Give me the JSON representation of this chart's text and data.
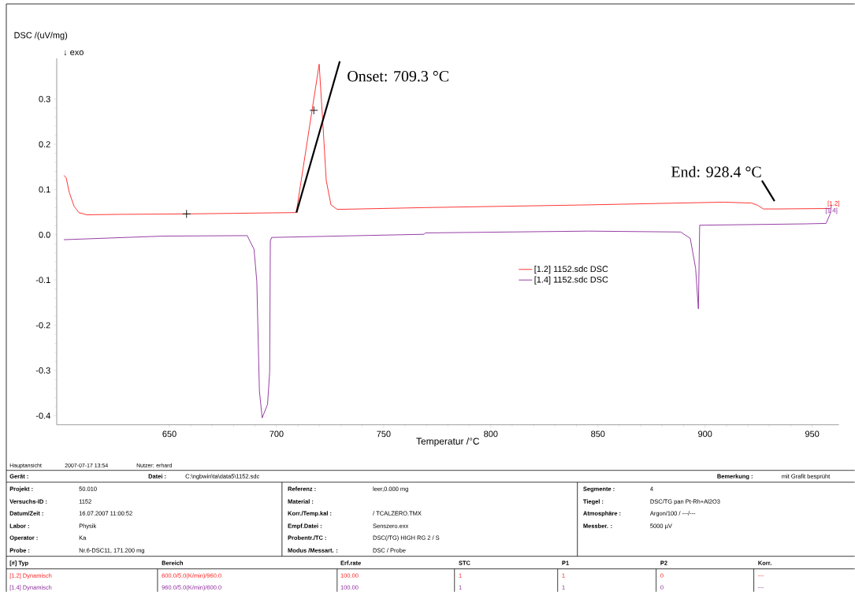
{
  "chart_data": {
    "type": "line",
    "ylabel": "DSC /(uV/mg)",
    "xlabel": "Temperatur /°C",
    "xlim": [
      597.4,
      962.5
    ],
    "ylim": [
      -0.42,
      0.39
    ],
    "xticks": [
      650,
      700,
      750,
      800,
      850,
      900,
      950
    ],
    "yticks": [
      -0.4,
      -0.3,
      -0.2,
      -0.1,
      {
        "value": 0,
        "label": "0.0"
      },
      0.1,
      0.2,
      0.3
    ],
    "legend": "right",
    "marker": "none",
    "grid": false,
    "series": [
      {
        "name": "[1.2] 1152.sdc DSC",
        "color": "#ff2020",
        "x": [
          600.7,
          601.8,
          603.3,
          605.5,
          607.7,
          611.4,
          626,
          658,
          709.2,
          719.9,
          721.7,
          723.2,
          725.4,
          728.3,
          769.5,
          845.6,
          908.8,
          921.7,
          924.6,
          927.2,
          934,
          958.5
        ],
        "values": [
          0.131,
          0.126,
          0.093,
          0.063,
          0.049,
          0.044,
          0.045,
          0.046,
          0.049,
          0.377,
          0.24,
          0.12,
          0.066,
          0.056,
          0.06,
          0.066,
          0.072,
          0.07,
          0.065,
          0.057,
          0.057,
          0.058
        ]
      },
      {
        "name": "[1.4] 1152.sdc DSC",
        "color": "#8b2a9b",
        "x": [
          959,
          958.4,
          956.5,
          947,
          897.5,
          896.9,
          895.6,
          893.1,
          888.6,
          845.6,
          769.5,
          768.8,
          697.7,
          697.1,
          696.8,
          695.8,
          693.3,
          692,
          690.8,
          689.5,
          686.3,
          647,
          600.7
        ],
        "values": [
          0.066,
          0.046,
          0.025,
          0.024,
          0.021,
          -0.164,
          -0.074,
          -0.008,
          0.006,
          0.008,
          0.004,
          0.001,
          -0.006,
          -0.014,
          -0.303,
          -0.375,
          -0.405,
          -0.345,
          -0.104,
          -0.032,
          -0.002,
          -0.003,
          -0.011
        ]
      },
      {
        "type": "scatter",
        "marker": "cross",
        "color": "#000000",
        "x": [
          658,
          717.4
        ],
        "values": [
          0.046,
          0.275
        ]
      }
    ],
    "annotations": [
      "↓ exo",
      {
        "text": "Onset: 709.3 °C",
        "x": 709.3,
        "y": 0.049
      },
      {
        "text": "End: 928.4 °C",
        "x": 928.4,
        "y": 0.057
      },
      {
        "text": "[1.2]",
        "x": 960,
        "y": 0.058
      },
      {
        "text": "[1.4]",
        "x": 959,
        "y": 0.063
      },
      "Hauptansicht",
      "2007-07-17 13:54",
      "Nutzer: erhard",
      "Gerät :",
      "Datei :",
      "C:\\ngbwin\\ta\\data5\\1152.sdc",
      "Bemerkung :",
      "mit Grafit besprüht",
      "Projekt :",
      "50.010",
      "Versuchs-ID :",
      "1152",
      "Datum/Zeit :",
      "16.07.2007 11:00:52",
      "Labor :",
      "Physik",
      "Operator :",
      "Ka",
      "Probe :",
      "Nr.6-DSC11, 171.200 mg",
      "Referenz :",
      "leer,0.000 mg",
      "Material :",
      "Korr./Temp.kal :",
      "/ TCALZERO.TMX",
      "Empf.Datei :",
      "Senszero.exx",
      "Probentr./TC :",
      "DSC(/TG) HIGH RG 2 / S",
      "Modus /Messart. :",
      "DSC / Probe",
      "Segmente :",
      "4",
      "Tiegel :",
      "DSC/TG pan Pt-Rh+Al2O3",
      "Atmosphäre :",
      "Argon/100 / ---/---",
      "Messber. :",
      "5000 µV",
      "[#] Typ",
      "Bereich",
      "Erf.rate",
      "STC",
      "P1",
      "P2",
      "Korr.",
      "[1.2] Dynamisch",
      "600.0/5.0(K/min)/960.0",
      "100.00",
      "1",
      "1",
      "0",
      "---",
      "[1.4] Dynamisch",
      "960.0/5.0(K/min)/600.0",
      "100.00",
      "1",
      "1",
      "0",
      "---"
    ]
  }
}
